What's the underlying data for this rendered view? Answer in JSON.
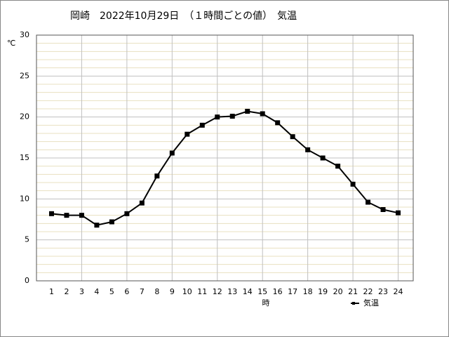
{
  "chart_data": {
    "type": "line",
    "title": "岡崎　2022年10月29日　（１時間ごとの値）　気温",
    "y_unit": "℃",
    "x_label": "時",
    "x": [
      1,
      2,
      3,
      4,
      5,
      6,
      7,
      8,
      9,
      10,
      11,
      12,
      13,
      14,
      15,
      16,
      17,
      18,
      19,
      20,
      21,
      22,
      23,
      24
    ],
    "series": [
      {
        "name": "気温",
        "color": "#000000",
        "values": [
          8.2,
          8.0,
          8.0,
          6.8,
          7.2,
          8.2,
          9.5,
          12.8,
          15.6,
          17.9,
          19.0,
          20.0,
          20.1,
          20.7,
          20.4,
          19.3,
          17.6,
          16.0,
          15.0,
          14.0,
          11.8,
          9.6,
          8.7,
          8.3
        ]
      }
    ],
    "xlim": [
      0,
      25
    ],
    "xticks": [
      1,
      2,
      3,
      4,
      5,
      6,
      7,
      8,
      9,
      10,
      11,
      12,
      13,
      14,
      15,
      16,
      17,
      18,
      19,
      20,
      21,
      22,
      23,
      24
    ],
    "xgrid": [
      3,
      6,
      9,
      12,
      15,
      18,
      21,
      24
    ],
    "ylim": [
      0,
      30
    ],
    "yticks": [
      0,
      5,
      10,
      15,
      20,
      25,
      30
    ],
    "minor_yticks": [
      1,
      2,
      3,
      4,
      6,
      7,
      8,
      9,
      11,
      12,
      13,
      14,
      16,
      17,
      18,
      19,
      21,
      22,
      23,
      24,
      26,
      27,
      28,
      29
    ],
    "grid": true,
    "minor_grid_color": "#e8e0c0",
    "grid_color": "#c0c0c0",
    "legend": "bottom-right"
  }
}
